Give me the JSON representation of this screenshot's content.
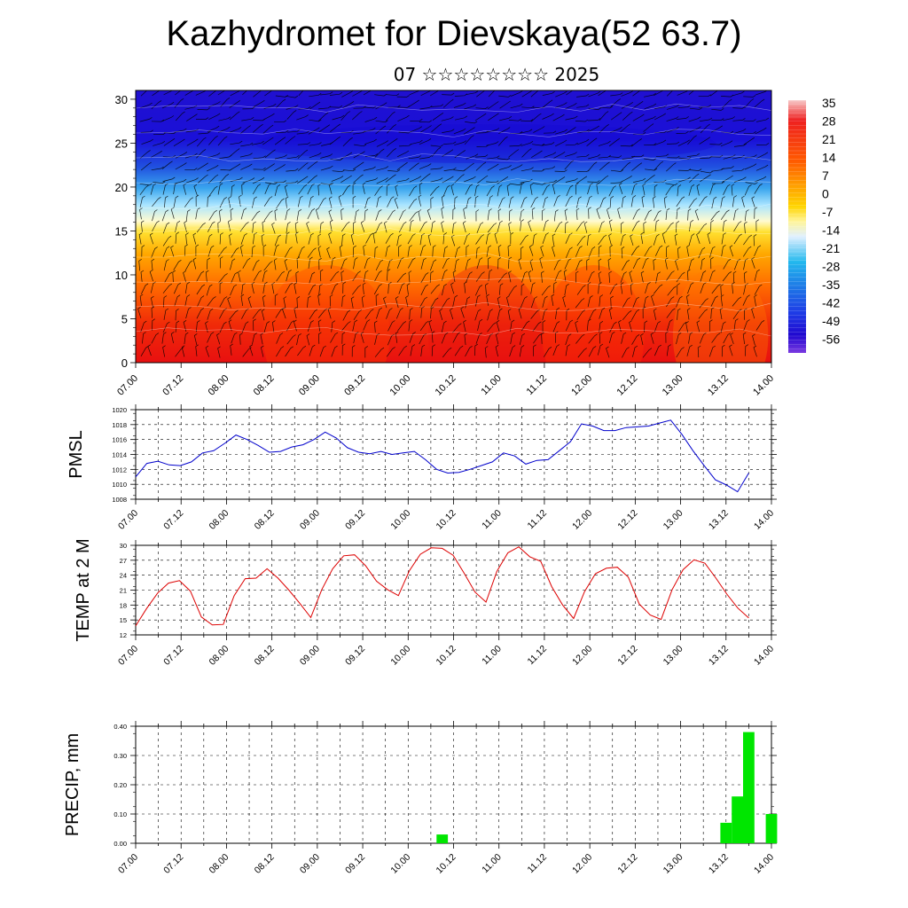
{
  "header": {
    "title": "Kazhydromet for Dievskaya(52 63.7)",
    "subtitle": "07 ☆☆☆☆☆☆☆☆ 2025"
  },
  "time_ticks": [
    "07.00",
    "07.12",
    "08.00",
    "08.12",
    "09.00",
    "09.12",
    "10.00",
    "10.12",
    "11.00",
    "11.12",
    "12.00",
    "12.12",
    "13.00",
    "13.12",
    "14.00"
  ],
  "chart_data": [
    {
      "type": "heatmap",
      "name": "cross-section",
      "x_ticks": [
        "07.00",
        "07.12",
        "08.00",
        "08.12",
        "09.00",
        "09.12",
        "10.00",
        "10.12",
        "11.00",
        "11.12",
        "12.00",
        "12.12",
        "13.00",
        "13.12",
        "14.00"
      ],
      "y_ticks": [
        "0",
        "5",
        "10",
        "15",
        "20",
        "25",
        "30"
      ],
      "ylim": [
        0,
        31
      ],
      "colorbar_labels": [
        "35",
        "28",
        "21",
        "14",
        "7",
        "0",
        "-7",
        "-14",
        "-21",
        "-28",
        "-35",
        "-42",
        "-49",
        "-56"
      ],
      "colorbar_colors": [
        "#f7c8c8",
        "#ee2020",
        "#ff5a00",
        "#ff9a00",
        "#ffd400",
        "#fff59a",
        "#e0f0ff",
        "#22b8ee",
        "#1e78e6",
        "#1e3ce6",
        "#2008d0",
        "#7a3ae0"
      ],
      "profile_levels": [
        0,
        4,
        8,
        12,
        15,
        17,
        19,
        21,
        24,
        27,
        31
      ],
      "profile_values": [
        34,
        28,
        20,
        10,
        0,
        -10,
        -25,
        -40,
        -52,
        -56,
        -56
      ]
    },
    {
      "type": "line",
      "name": "pmsl",
      "ylabel": "PMSL",
      "ylim": [
        1008,
        1020
      ],
      "y_ticks": [
        "1008",
        "1010",
        "1012",
        "1014",
        "1016",
        "1018",
        "1020"
      ],
      "x_ticks": [
        "07.00",
        "07.12",
        "08.00",
        "08.12",
        "09.00",
        "09.12",
        "10.00",
        "10.12",
        "11.00",
        "11.12",
        "12.00",
        "12.12",
        "13.00",
        "13.12",
        "14.00"
      ],
      "color": "#0000cc",
      "values": [
        1011.0,
        1012.8,
        1013.1,
        1012.6,
        1012.5,
        1013.0,
        1014.2,
        1014.5,
        1015.5,
        1016.6,
        1016.0,
        1015.2,
        1014.3,
        1014.4,
        1015.0,
        1015.3,
        1016.0,
        1017.0,
        1016.2,
        1014.9,
        1014.3,
        1014.1,
        1014.4,
        1014.0,
        1014.2,
        1014.4,
        1013.3,
        1012.0,
        1011.5,
        1011.6,
        1012.0,
        1012.5,
        1013.0,
        1014.2,
        1013.8,
        1012.7,
        1013.2,
        1013.3,
        1014.5,
        1015.7,
        1018.1,
        1017.8,
        1017.2,
        1017.2,
        1017.6,
        1017.7,
        1017.8,
        1018.2,
        1018.6,
        1016.7,
        1014.5,
        1012.5,
        1010.6,
        1009.9,
        1009.0,
        1011.5
      ]
    },
    {
      "type": "line",
      "name": "temp2m",
      "ylabel": "TEMP at 2 M",
      "ylim": [
        12,
        30
      ],
      "y_ticks": [
        "12",
        "15",
        "18",
        "21",
        "24",
        "27",
        "30"
      ],
      "x_ticks": [
        "07.00",
        "07.12",
        "08.00",
        "08.12",
        "09.00",
        "09.12",
        "10.00",
        "10.12",
        "11.00",
        "11.12",
        "12.00",
        "12.12",
        "13.00",
        "13.12",
        "14.00"
      ],
      "color": "#dd0000",
      "values": [
        13.8,
        17.3,
        20.4,
        22.4,
        22.9,
        20.8,
        15.6,
        14.0,
        14.1,
        19.9,
        23.3,
        23.4,
        25.3,
        23.4,
        21.0,
        18.3,
        15.5,
        21.1,
        25.3,
        27.9,
        28.1,
        25.9,
        22.8,
        21.1,
        19.9,
        24.9,
        28.2,
        29.5,
        29.4,
        28.0,
        24.4,
        20.6,
        18.6,
        24.8,
        28.5,
        29.7,
        27.7,
        26.8,
        21.7,
        18.0,
        15.3,
        20.7,
        24.3,
        25.4,
        25.6,
        23.6,
        18.2,
        16.0,
        15.1,
        21.1,
        25.1,
        27.1,
        26.4,
        23.4,
        20.2,
        17.4,
        15.4
      ]
    },
    {
      "type": "bar",
      "name": "precip",
      "ylabel": "PRECIP, mm",
      "ylim": [
        0,
        0.4
      ],
      "y_ticks": [
        "0.00",
        "0.10",
        "0.20",
        "0.30",
        "0.40"
      ],
      "x_ticks": [
        "07.00",
        "07.12",
        "08.00",
        "08.12",
        "09.00",
        "09.12",
        "10.00",
        "10.12",
        "11.00",
        "11.12",
        "12.00",
        "12.12",
        "13.00",
        "13.12",
        "14.00"
      ],
      "color": "#00e600",
      "bars": [
        {
          "t": 81,
          "value": 0.03
        },
        {
          "t": 156,
          "value": 0.07
        },
        {
          "t": 159,
          "value": 0.16
        },
        {
          "t": 162,
          "value": 0.38
        },
        {
          "t": 168,
          "value": 0.1
        }
      ]
    }
  ]
}
